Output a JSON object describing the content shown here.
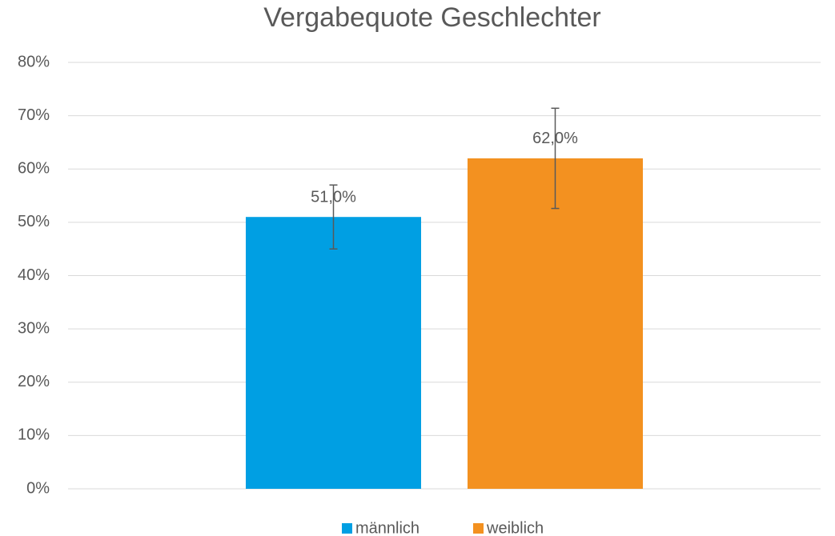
{
  "chart_data": {
    "type": "bar",
    "title": "Vergabequote Geschlechter",
    "categories": [
      null
    ],
    "series": [
      {
        "name": "männlich",
        "color": "#009fe3",
        "values": [
          51
        ],
        "errors": [
          6
        ],
        "value_labels": [
          "51,0%"
        ]
      },
      {
        "name": "weiblich",
        "color": "#f39120",
        "values": [
          62
        ],
        "errors": [
          9.4
        ],
        "value_labels": [
          "62,0%"
        ]
      }
    ],
    "ylim": [
      0,
      80
    ],
    "yticks": [
      {
        "value": 0,
        "label": "0%"
      },
      {
        "value": 10,
        "label": "10%"
      },
      {
        "value": 20,
        "label": "20%"
      },
      {
        "value": 30,
        "label": "30%"
      },
      {
        "value": 40,
        "label": "40%"
      },
      {
        "value": 50,
        "label": "50%"
      },
      {
        "value": 60,
        "label": "60%"
      },
      {
        "value": 70,
        "label": "70%"
      },
      {
        "value": 80,
        "label": "80%"
      }
    ],
    "grid": true,
    "legend": "bottom"
  }
}
